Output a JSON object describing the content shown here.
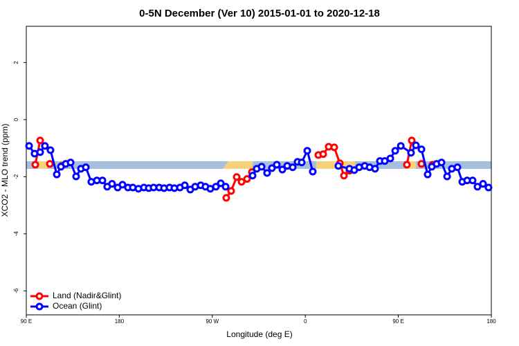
{
  "chart_data": {
    "type": "line",
    "title": "0-5N December (Ver 10)   2015-01-01 to 2020-12-18",
    "x_label": "Longitude (deg E)",
    "y_label": "XCO2 - MLO trend (ppm)",
    "xlim": [
      90,
      540
    ],
    "ylim": [
      -6.84,
      3.27
    ],
    "xticks": [
      {
        "value": 90,
        "label": "90 E"
      },
      180,
      {
        "value": 270,
        "label": "90 W"
      },
      {
        "value": 360,
        "label": "0"
      },
      {
        "value": 450,
        "label": "90 E"
      },
      {
        "value": 540,
        "label": "180"
      }
    ],
    "yticks": [
      -6,
      -4,
      -2,
      0,
      2
    ],
    "legend": "bottomleft",
    "series": [
      {
        "name": "Land (Nadir&Glint)",
        "color": "#ff0000",
        "x": [
          98.7,
          103.4,
          null,
          112.8,
          null,
          124.2,
          null,
          283.5,
          288.2,
          293.6,
          298.3,
          303.6,
          308.3,
          null,
          372.6,
          377.3,
          382.6,
          388.0,
          393.4,
          397.4,
          402.7,
          null,
          458.3,
          463.0,
          null,
          472.4,
          null,
          483.1
        ],
        "values": [
          -1.58,
          -0.73,
          null,
          -1.55,
          null,
          -1.62,
          null,
          -2.74,
          -2.5,
          -2.01,
          -2.18,
          -2.08,
          -1.84,
          null,
          -1.24,
          -1.21,
          -0.95,
          -0.97,
          -1.53,
          -1.96,
          -1.79,
          null,
          -1.58,
          -0.73,
          null,
          -1.55,
          null,
          -1.58
        ]
      },
      {
        "name": "Ocean (Glint)",
        "color": "#0000ff",
        "x": [
          92.7,
          98.0,
          103.4,
          108.0,
          113.4,
          119.5,
          123.5,
          128.2,
          132.9,
          138.2,
          142.9,
          147.6,
          152.9,
          158.3,
          163.7,
          168.3,
          173.0,
          178.4,
          183.1,
          188.4,
          193.1,
          198.5,
          203.8,
          208.5,
          213.2,
          218.6,
          223.3,
          228.6,
          233.3,
          238.7,
          243.4,
          248.7,
          253.4,
          258.8,
          263.4,
          268.1,
          273.5,
          278.2,
          282.9,
          null,
          309.0,
          313.0,
          317.7,
          323.0,
          327.7,
          332.4,
          337.8,
          342.5,
          347.8,
          352.5,
          356.5,
          361.9,
          367.2,
          null,
          392.0,
          402.7,
          407.4,
          412.1,
          417.5,
          422.2,
          427.5,
          432.2,
          436.9,
          442.3,
          447.0,
          452.4,
          462.3,
          467.0,
          472.4,
          478.4,
          482.4,
          487.1,
          491.8,
          497.2,
          501.8,
          507.2,
          511.9,
          516.6,
          521.9,
          526.6,
          532.0,
          537.3
        ],
        "values": [
          -0.92,
          -1.19,
          -1.14,
          -0.92,
          -1.07,
          -1.92,
          -1.65,
          -1.55,
          -1.5,
          -1.99,
          -1.72,
          -1.67,
          -2.18,
          -2.13,
          -2.13,
          -2.35,
          -2.25,
          -2.38,
          -2.28,
          -2.38,
          -2.38,
          -2.42,
          -2.38,
          -2.4,
          -2.38,
          -2.38,
          -2.4,
          -2.38,
          -2.4,
          -2.38,
          -2.3,
          -2.45,
          -2.35,
          -2.3,
          -2.35,
          -2.42,
          -2.35,
          -2.23,
          -2.35,
          null,
          -1.96,
          -1.72,
          -1.65,
          -1.87,
          -1.7,
          -1.58,
          -1.75,
          -1.62,
          -1.67,
          -1.48,
          -1.5,
          -1.09,
          -1.82,
          null,
          -1.62,
          -1.72,
          -1.77,
          -1.67,
          -1.62,
          -1.67,
          -1.72,
          -1.45,
          -1.45,
          -1.36,
          -1.09,
          -0.92,
          -1.16,
          -0.9,
          -1.04,
          -1.92,
          -1.65,
          -1.55,
          -1.5,
          -1.99,
          -1.72,
          -1.67,
          -2.18,
          -2.13,
          -2.13,
          -2.35,
          -2.25,
          -2.38
        ]
      }
    ]
  }
}
